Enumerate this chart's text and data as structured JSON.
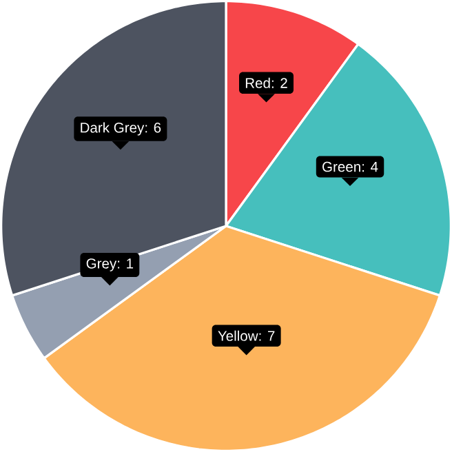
{
  "chart_data": {
    "type": "pie",
    "categories": [
      "Red",
      "Green",
      "Yellow",
      "Grey",
      "Dark Grey"
    ],
    "values": [
      2,
      4,
      7,
      1,
      6
    ],
    "colors": [
      "#f7464a",
      "#46bfbd",
      "#fdb45c",
      "#949fb1",
      "#4d5360"
    ],
    "value_labels": [
      ": 2",
      ": 4",
      ": 7",
      ": 1",
      ": 6"
    ]
  }
}
